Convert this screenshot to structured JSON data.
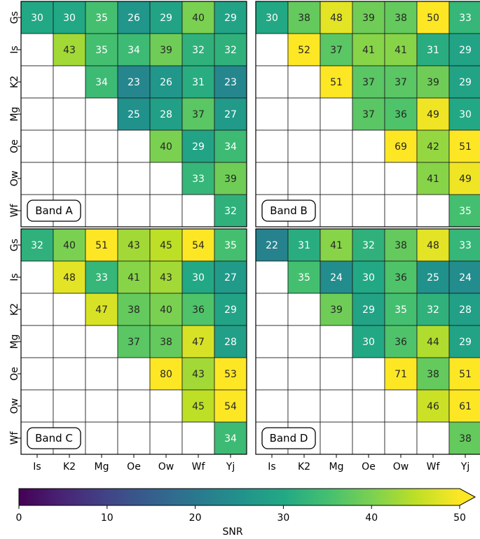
{
  "chart_data": {
    "type": "heatmap",
    "rows": [
      "Gs",
      "Is",
      "K2",
      "Mg",
      "Oe",
      "Ow",
      "Wf"
    ],
    "columns": [
      "Is",
      "K2",
      "Mg",
      "Oe",
      "Ow",
      "Wf",
      "Yj"
    ],
    "panels": [
      {
        "label": "Band A",
        "values": [
          [
            30,
            30,
            35,
            26,
            29,
            40,
            29
          ],
          [
            null,
            43,
            35,
            34,
            39,
            32,
            32
          ],
          [
            null,
            null,
            34,
            23,
            26,
            31,
            23
          ],
          [
            null,
            null,
            null,
            25,
            28,
            37,
            27
          ],
          [
            null,
            null,
            null,
            null,
            40,
            29,
            34
          ],
          [
            null,
            null,
            null,
            null,
            null,
            33,
            39
          ],
          [
            null,
            null,
            null,
            null,
            null,
            null,
            32
          ]
        ]
      },
      {
        "label": "Band B",
        "values": [
          [
            30,
            38,
            48,
            39,
            38,
            50,
            33
          ],
          [
            null,
            52,
            37,
            41,
            41,
            31,
            29
          ],
          [
            null,
            null,
            51,
            37,
            37,
            39,
            29
          ],
          [
            null,
            null,
            null,
            37,
            36,
            49,
            30
          ],
          [
            null,
            null,
            null,
            null,
            69,
            42,
            51
          ],
          [
            null,
            null,
            null,
            null,
            null,
            41,
            49
          ],
          [
            null,
            null,
            null,
            null,
            null,
            null,
            35
          ]
        ]
      },
      {
        "label": "Band C",
        "values": [
          [
            32,
            40,
            51,
            43,
            45,
            54,
            35
          ],
          [
            null,
            48,
            33,
            41,
            43,
            30,
            27
          ],
          [
            null,
            null,
            47,
            38,
            40,
            36,
            29
          ],
          [
            null,
            null,
            null,
            37,
            38,
            47,
            28
          ],
          [
            null,
            null,
            null,
            null,
            80,
            43,
            53
          ],
          [
            null,
            null,
            null,
            null,
            null,
            45,
            54
          ],
          [
            null,
            null,
            null,
            null,
            null,
            null,
            34
          ]
        ]
      },
      {
        "label": "Band D",
        "values": [
          [
            22,
            31,
            41,
            32,
            38,
            48,
            33
          ],
          [
            null,
            35,
            24,
            30,
            36,
            25,
            24
          ],
          [
            null,
            null,
            39,
            29,
            35,
            32,
            28
          ],
          [
            null,
            null,
            null,
            30,
            36,
            44,
            29
          ],
          [
            null,
            null,
            null,
            null,
            71,
            38,
            51
          ],
          [
            null,
            null,
            null,
            null,
            null,
            46,
            61
          ],
          [
            null,
            null,
            null,
            null,
            null,
            null,
            38
          ]
        ]
      }
    ],
    "colorbar": {
      "label": "SNR",
      "min": 0,
      "max": 50,
      "ticks": [
        0,
        10,
        20,
        30,
        40,
        50
      ],
      "colormap": "viridis",
      "extend": "max"
    }
  }
}
